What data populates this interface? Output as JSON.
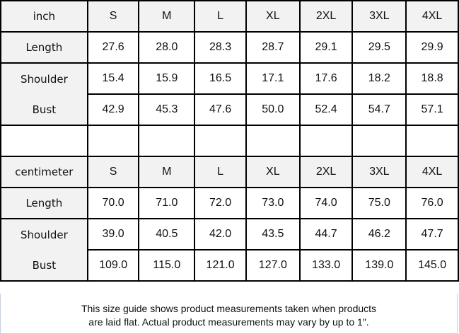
{
  "sizes": [
    "S",
    "M",
    "L",
    "XL",
    "2XL",
    "3XL",
    "4XL"
  ],
  "inch": {
    "unit_label": "inch",
    "rows": [
      {
        "label": "Length",
        "values": [
          "27.6",
          "28.0",
          "28.3",
          "28.7",
          "29.1",
          "29.5",
          "29.9"
        ]
      },
      {
        "label": "Shoulder",
        "values": [
          "15.4",
          "15.9",
          "16.5",
          "17.1",
          "17.6",
          "18.2",
          "18.8"
        ]
      },
      {
        "label": "Bust",
        "values": [
          "42.9",
          "45.3",
          "47.6",
          "50.0",
          "52.4",
          "54.7",
          "57.1"
        ]
      }
    ]
  },
  "centimeter": {
    "unit_label": "centimeter",
    "rows": [
      {
        "label": "Length",
        "values": [
          "70.0",
          "71.0",
          "72.0",
          "73.0",
          "74.0",
          "75.0",
          "76.0"
        ]
      },
      {
        "label": "Shoulder",
        "values": [
          "39.0",
          "40.5",
          "42.0",
          "43.5",
          "44.7",
          "46.2",
          "47.7"
        ]
      },
      {
        "label": "Bust",
        "values": [
          "109.0",
          "115.0",
          "121.0",
          "127.0",
          "133.0",
          "139.0",
          "145.0"
        ]
      }
    ]
  },
  "footer": {
    "line1": "This size guide shows product measurements taken when products",
    "line2": "are laid flat. Actual product measurements may vary by up to 1\"."
  }
}
